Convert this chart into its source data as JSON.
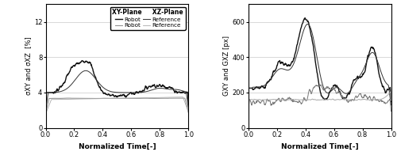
{
  "left_ylabel": "σXY and σXZ  [%]",
  "right_ylabel": "GXY and GXZ [px]",
  "xlabel": "Normalized Time[-]",
  "left_ylim": [
    0,
    14
  ],
  "left_yticks": [
    0,
    4,
    8,
    12
  ],
  "right_ylim": [
    0,
    700
  ],
  "right_yticks": [
    0,
    200,
    400,
    600
  ],
  "xlim": [
    0,
    1
  ],
  "xticks": [
    0,
    0.2,
    0.4,
    0.6,
    0.8,
    1.0
  ]
}
